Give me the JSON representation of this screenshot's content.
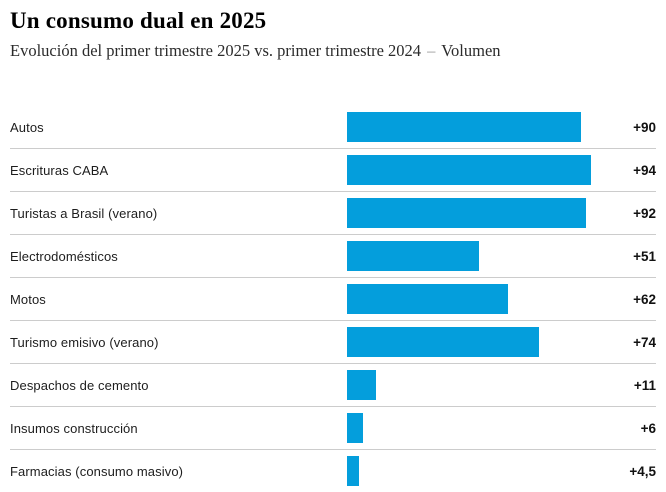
{
  "header": {
    "title": "Un consumo dual en 2025",
    "subtitle_main": "Evolución del primer trimestre 2025 vs. primer trimestre 2024",
    "subtitle_separator": "–",
    "subtitle_suffix": "Volumen"
  },
  "chart_data": {
    "type": "bar",
    "orientation": "horizontal",
    "title": "Un consumo dual en 2025",
    "subtitle": "Evolución del primer trimestre 2025 vs. primer trimestre 2024 – Volumen",
    "xlabel": "",
    "ylabel": "",
    "xlim": [
      0,
      94
    ],
    "grid": false,
    "legend": false,
    "bar_color": "#049edc",
    "separator_color": "#cccccc",
    "categories": [
      "Autos",
      "Escrituras CABA",
      "Turistas a Brasil (verano)",
      "Electrodomésticos",
      "Motos",
      "Turismo emisivo (verano)",
      "Despachos de cemento",
      "Insumos construcción",
      "Farmacias (consumo masivo)"
    ],
    "values": [
      90,
      94,
      92,
      51,
      62,
      74,
      11,
      6,
      4.5
    ],
    "value_labels": [
      "+90",
      "+94",
      "+92",
      "+51",
      "+62",
      "+74",
      "+11",
      "+6",
      "+4,5"
    ]
  }
}
